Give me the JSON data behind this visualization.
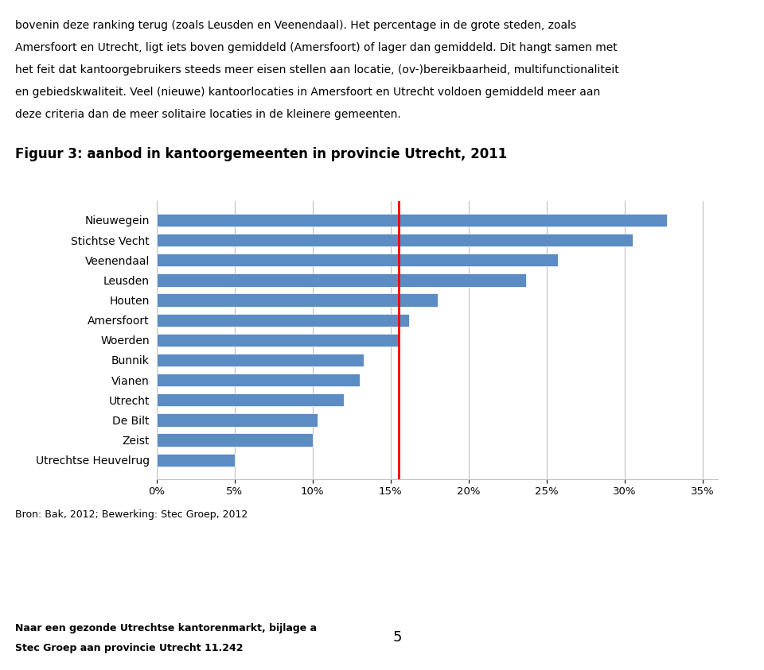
{
  "title": "Figuur 3: aanbod in kantoorgemeenten in provincie Utrecht, 2011",
  "paragraph1": "bovenin deze ranking terug (zoals Leusden en Veenendaal). Het percentage in de grote steden, zoals\nAmersfoort en Utrecht, ligt iets boven gemiddeld (Amersfoort) of lager dan gemiddeld.",
  "paragraph2": "Dit hangt samen met het feit dat kantoorgebruikers steeds meer eisen stellen aan locatie, (ov-)bereikbaarheid, multifunctionaliteit\nen gebiedskwaliteit.",
  "paragraph3": "Veel (nieuwe) kantoorlocaties in Amersfoort en Utrecht voldoen gemiddeld meer aan\ndeze criteria dan de meer solitaire locaties in de kleinere gemeenten.",
  "categories": [
    "Nieuwegein",
    "Stichtse Vecht",
    "Veenendaal",
    "Leusden",
    "Houten",
    "Amersfoort",
    "Woerden",
    "Bunnik",
    "Vianen",
    "Utrecht",
    "De Bilt",
    "Zeist",
    "Utrechtse Heuvelrug"
  ],
  "values": [
    0.327,
    0.305,
    0.257,
    0.237,
    0.18,
    0.162,
    0.155,
    0.133,
    0.13,
    0.12,
    0.103,
    0.1,
    0.05
  ],
  "bar_color": "#5B8CC4",
  "reference_line_x": 0.155,
  "reference_line_color": "#FF0000",
  "xlim": [
    0,
    0.36
  ],
  "xticks": [
    0,
    0.05,
    0.1,
    0.15,
    0.2,
    0.25,
    0.3,
    0.35
  ],
  "source_text": "Bron: Bak, 2012; Bewerking: Stec Groep, 2012",
  "footer_line1": "Naar een gezonde Utrechtse kantorenmarkt, bijlage a",
  "footer_line2": "Stec Groep aan provincie Utrecht 11.242",
  "footer_page": "5",
  "title_fontsize": 12,
  "label_fontsize": 10,
  "tick_fontsize": 9.5,
  "body_fontsize": 10,
  "background_color": "#FFFFFF",
  "grid_color": "#BFBFBF"
}
